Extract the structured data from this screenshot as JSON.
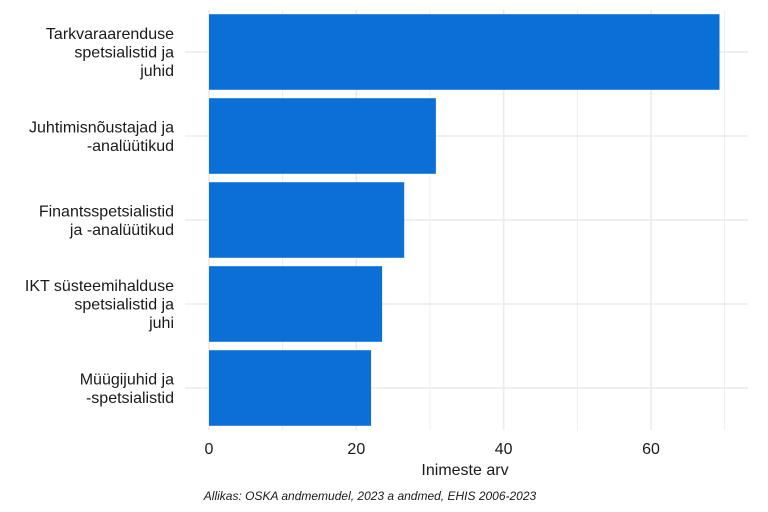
{
  "chart_data": {
    "type": "bar",
    "orientation": "horizontal",
    "categories": [
      [
        "Tarkvaraarenduse",
        "spetsialistid ja",
        "juhid"
      ],
      [
        "Juhtimisnõustajad ja",
        "-analüütikud"
      ],
      [
        "Finantsspetsialistid",
        "ja -analüütikud"
      ],
      [
        "IKT süsteemihalduse",
        "spetsialistid ja",
        "juhi"
      ],
      [
        "Müügijuhid ja",
        "-spetsialistid"
      ]
    ],
    "values": [
      69.3,
      30.8,
      26.5,
      23.5,
      22.0
    ],
    "xlabel": "Inimeste arv",
    "ylabel": "",
    "xlim": [
      0,
      73
    ],
    "xticks": [
      0,
      20,
      40,
      60
    ],
    "grid": true,
    "bar_color": "#0a6fd6",
    "grid_color": "#ebebeb",
    "caption": "Allikas: OSKA andmemudel, 2023 a andmed, EHIS 2006-2023"
  }
}
